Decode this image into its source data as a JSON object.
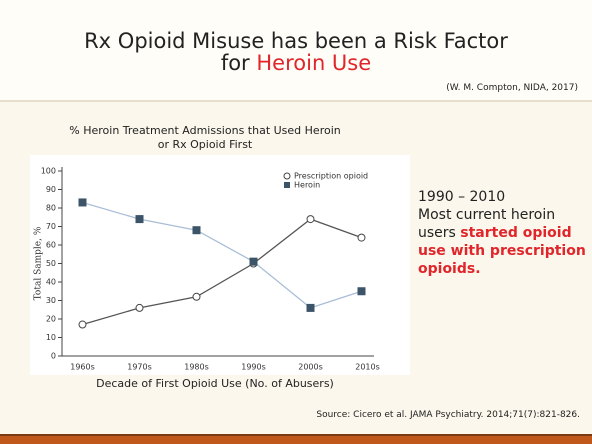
{
  "slide": {
    "title_line1": "Rx Opioid Misuse has been a Risk Factor",
    "title_line2": "for ",
    "title_highlight": "Heroin Use",
    "citation": "(W. M. Compton, NIDA, 2017)",
    "note_period": "1990 – 2010",
    "note_line1": "Most current heroin",
    "note_line2": "users ",
    "note_highlight1": "started opioid",
    "note_highlight2": "use with prescription",
    "note_highlight3": "opioids.",
    "source": "Source: Cicero et al. JAMA Psychiatry. 2014;71(7):821-826."
  },
  "chart_data": {
    "type": "line",
    "title": [
      "% Heroin Treatment Admissions that Used Heroin",
      "or Rx Opioid First"
    ],
    "x_label": "Decade of First Opioid Use (No. of Abusers)",
    "y_label": "Total Sample, %",
    "categories": [
      "1960s",
      "1970s",
      "1980s",
      "1990s",
      "2000s",
      "2010s"
    ],
    "series": [
      {
        "name": "Prescription opioid",
        "color": "#555555",
        "marker": "circle",
        "values": [
          17,
          26,
          32,
          50,
          74,
          64
        ]
      },
      {
        "name": "Heroin",
        "color": "#a9bed6",
        "marker": "square",
        "values": [
          83,
          74,
          68,
          51,
          26,
          35
        ]
      }
    ],
    "ylim": [
      0,
      100
    ],
    "yticks": [
      0,
      10,
      20,
      30,
      40,
      50,
      60,
      70,
      80,
      90,
      100
    ],
    "legend": "upper right"
  }
}
